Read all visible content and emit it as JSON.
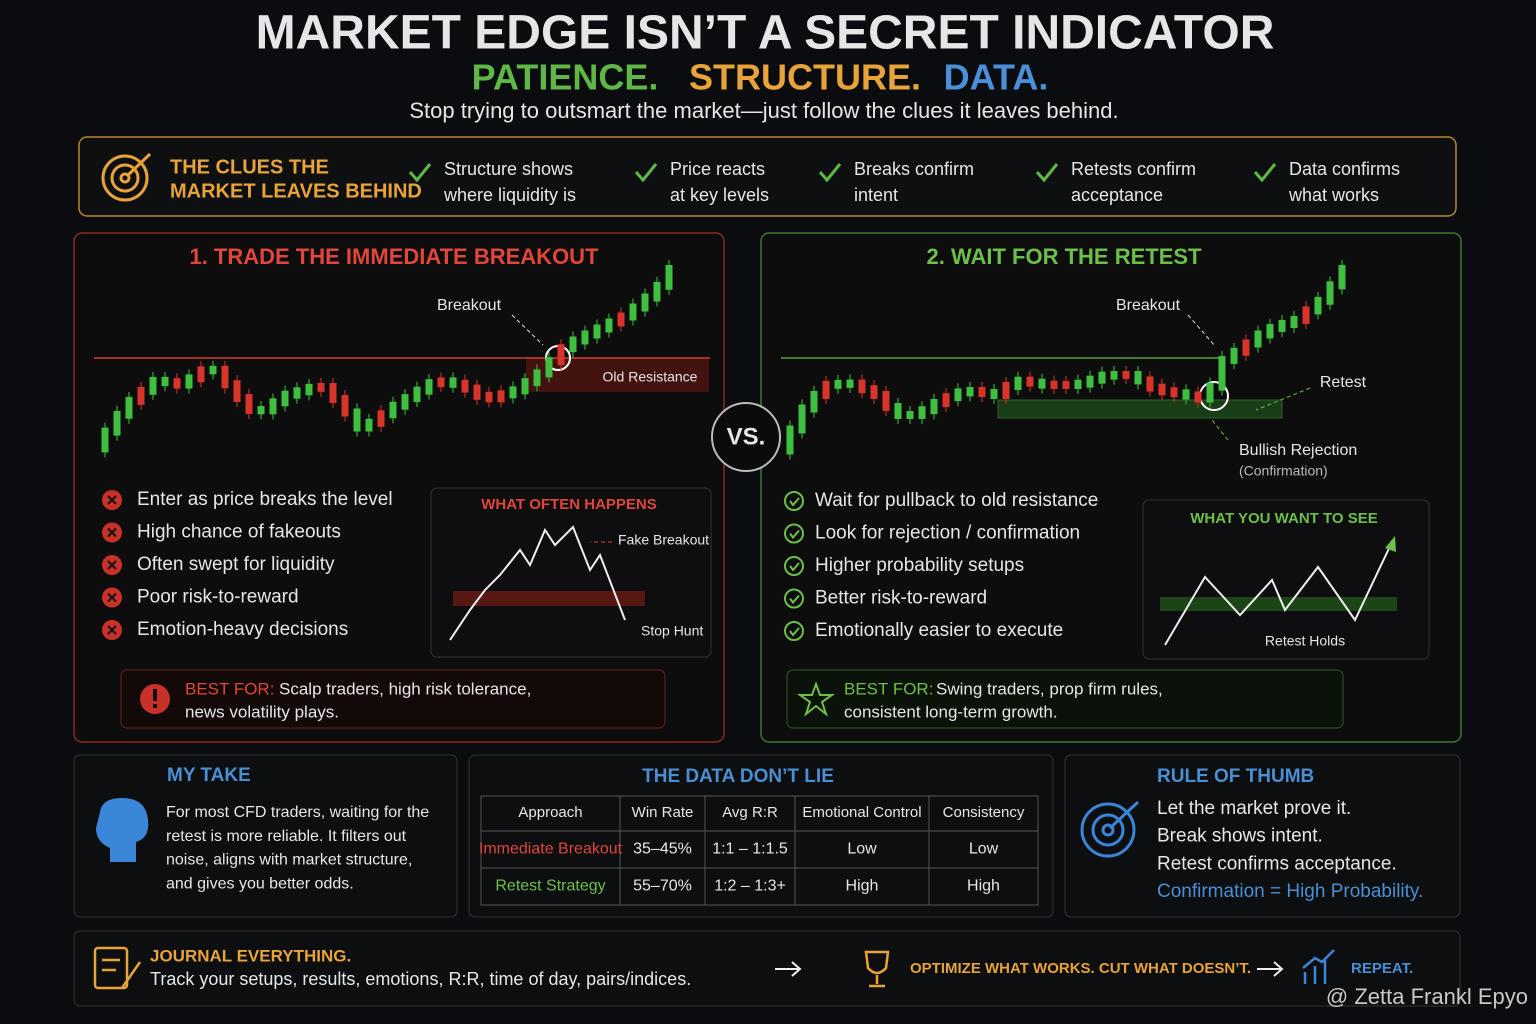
{
  "header": {
    "title": "MARKET EDGE ISN’T A SECRET INDICATOR",
    "tagline": [
      "PATIENCE.",
      "STRUCTURE.",
      "DATA."
    ],
    "subtitle": "Stop trying to outsmart the market—just follow the clues it leaves behind."
  },
  "clues": {
    "title": [
      "THE CLUES THE",
      "MARKET LEAVES BEHIND"
    ],
    "items": [
      [
        "Structure shows",
        "where liquidity is"
      ],
      [
        "Price reacts",
        "at key levels"
      ],
      [
        "Breaks confirm",
        "intent"
      ],
      [
        "Retests confirm",
        "acceptance"
      ],
      [
        "Data confirms",
        "what works"
      ]
    ]
  },
  "breakout": {
    "title": "1. TRADE THE IMMEDIATE BREAKOUT",
    "breakout_label": "Breakout",
    "resistance_label": "Old Resistance",
    "points": [
      "Enter as price breaks the level",
      "High chance of fakeouts",
      "Often swept for liquidity",
      "Poor risk-to-reward",
      "Emotion-heavy decisions"
    ],
    "inset": {
      "title": "WHAT OFTEN HAPPENS",
      "fake": "Fake Breakout",
      "stop": "Stop Hunt"
    },
    "best_for": {
      "label": "BEST FOR:",
      "text": [
        "Scalp traders, high risk tolerance,",
        "news volatility plays."
      ]
    }
  },
  "vs": "VS.",
  "retest": {
    "title": "2. WAIT FOR THE RETEST",
    "breakout_label": "Breakout",
    "retest_label": "Retest",
    "rejection_label": "Bullish Rejection",
    "confirmation_label": "(Confirmation)",
    "points": [
      "Wait for pullback to old resistance",
      "Look for rejection / confirmation",
      "Higher probability setups",
      "Better risk-to-reward",
      "Emotionally easier to execute"
    ],
    "inset": {
      "title": "WHAT YOU WANT TO SEE",
      "holds": "Retest Holds"
    },
    "best_for": {
      "label": "BEST FOR:",
      "text": [
        "Swing traders, prop firm rules,",
        "consistent long-term growth."
      ]
    }
  },
  "my_take": {
    "title": "MY TAKE",
    "lines": [
      "For most CFD traders, waiting for the",
      "retest is more reliable. It filters out",
      "noise, aligns with market structure,",
      "and gives you better odds."
    ]
  },
  "data_table": {
    "title": "THE DATA DON’T LIE",
    "header": [
      "Approach",
      "Win Rate",
      "Avg R:R",
      "Emotional Control",
      "Consistency"
    ],
    "rows": [
      [
        "Immediate Breakout",
        "35–45%",
        "1:1 – 1:1.5",
        "Low",
        "Low"
      ],
      [
        "Retest Strategy",
        "55–70%",
        "1:2 – 1:3+",
        "High",
        "High"
      ]
    ]
  },
  "rule": {
    "title": "RULE OF THUMB",
    "lines": [
      "Let the market prove it.",
      "Break shows intent.",
      "Retest confirms acceptance.",
      "Confirmation = High Probability."
    ]
  },
  "footer": {
    "journal_title": "JOURNAL EVERYTHING.",
    "journal_text": "Track your setups, results, emotions, R:R, time of day, pairs/indices.",
    "optimize": "OPTIMIZE WHAT WORKS. CUT WHAT DOESN’T.",
    "repeat": "REPEAT.",
    "watermark": "@ Zetta Frankl Epyo"
  }
}
